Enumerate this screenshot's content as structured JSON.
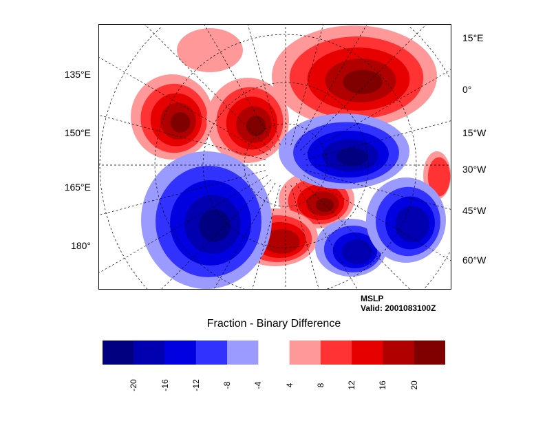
{
  "map": {
    "left_labels": [
      "135°E",
      "150°E",
      "165°E",
      "180°"
    ],
    "right_labels": [
      "15°E",
      "0°",
      "15°W",
      "30°W",
      "45°W",
      "60°W"
    ]
  },
  "info": {
    "variable": "MSLP",
    "valid": "Valid: 2001083100Z"
  },
  "title": "Fraction - Binary Difference",
  "colorbar": {
    "colors": [
      "#000080",
      "#0000b0",
      "#0000e0",
      "#3232ff",
      "#9b9bff",
      "#ffffff",
      "#ff9999",
      "#ff3333",
      "#e60000",
      "#b00000",
      "#800000"
    ],
    "tick_labels": [
      "-20",
      "-16",
      "-12",
      "-8",
      "-4",
      "4",
      "8",
      "12",
      "16",
      "20"
    ]
  }
}
